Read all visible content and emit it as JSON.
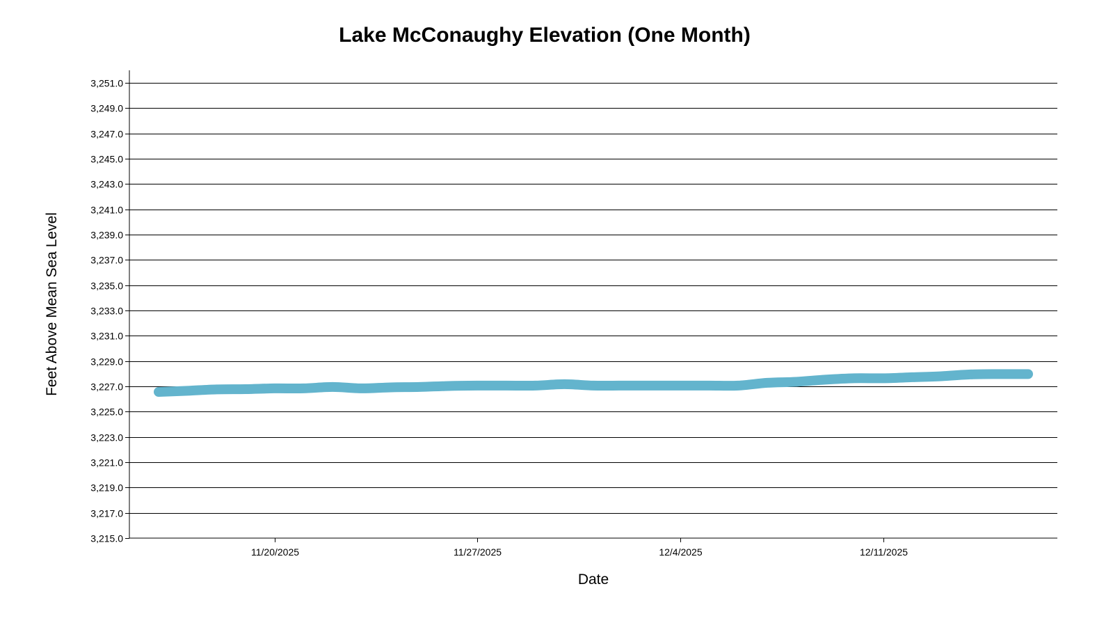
{
  "chart_data": {
    "type": "line",
    "title": "Lake McConaughy Elevation (One Month)",
    "xlabel": "Date",
    "ylabel": "Feet Above Mean Sea Level",
    "ylim": [
      3215,
      3252
    ],
    "yticks": [
      "3,215.0",
      "3,217.0",
      "3,219.0",
      "3,221.0",
      "3,223.0",
      "3,225.0",
      "3,227.0",
      "3,229.0",
      "3,231.0",
      "3,233.0",
      "3,235.0",
      "3,237.0",
      "3,239.0",
      "3,241.0",
      "3,243.0",
      "3,245.0",
      "3,247.0",
      "3,249.0",
      "3,251.0"
    ],
    "xticks": [
      {
        "label": "11/20/2025",
        "day": 4
      },
      {
        "label": "11/27/2025",
        "day": 11
      },
      {
        "label": "12/4/2025",
        "day": 18
      },
      {
        "label": "12/11/2025",
        "day": 25
      }
    ],
    "grid": true,
    "line_color": "#63b4cd",
    "series": [
      {
        "name": "Elevation",
        "x": [
          "11/16/2025",
          "11/17/2025",
          "11/18/2025",
          "11/19/2025",
          "11/20/2025",
          "11/21/2025",
          "11/22/2025",
          "11/23/2025",
          "11/24/2025",
          "11/25/2025",
          "11/26/2025",
          "11/27/2025",
          "11/28/2025",
          "11/29/2025",
          "11/30/2025",
          "12/1/2025",
          "12/2/2025",
          "12/3/2025",
          "12/4/2025",
          "12/5/2025",
          "12/6/2025",
          "12/7/2025",
          "12/8/2025",
          "12/9/2025",
          "12/10/2025",
          "12/11/2025",
          "12/12/2025",
          "12/13/2025",
          "12/14/2025",
          "12/15/2025",
          "12/16/2025"
        ],
        "values": [
          3226.56,
          3226.65,
          3226.76,
          3226.78,
          3226.84,
          3226.84,
          3226.95,
          3226.84,
          3226.92,
          3226.95,
          3227.03,
          3227.06,
          3227.06,
          3227.06,
          3227.17,
          3227.06,
          3227.06,
          3227.06,
          3227.06,
          3227.06,
          3227.06,
          3227.28,
          3227.36,
          3227.53,
          3227.64,
          3227.64,
          3227.72,
          3227.8,
          3227.94,
          3227.97,
          3227.97
        ]
      }
    ]
  }
}
